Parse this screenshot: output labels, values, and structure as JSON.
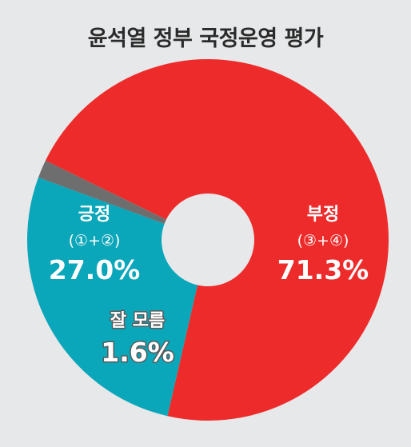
{
  "chart_data": {
    "type": "pie",
    "title": "윤석열 정부 국정운영 평가",
    "slices": [
      {
        "name": "부정",
        "sub": "(③+④)",
        "value": 71.3,
        "display": "71.3%",
        "color": "#ee2b2b"
      },
      {
        "name": "긍정",
        "sub": "(①+②)",
        "value": 27.0,
        "display": "27.0%",
        "color": "#0aa6b9"
      },
      {
        "name": "잘 모름",
        "sub": "",
        "value": 1.6,
        "display": "1.6%",
        "color": "#6e6e6e"
      }
    ],
    "legend": "none",
    "donut_hole": true
  }
}
